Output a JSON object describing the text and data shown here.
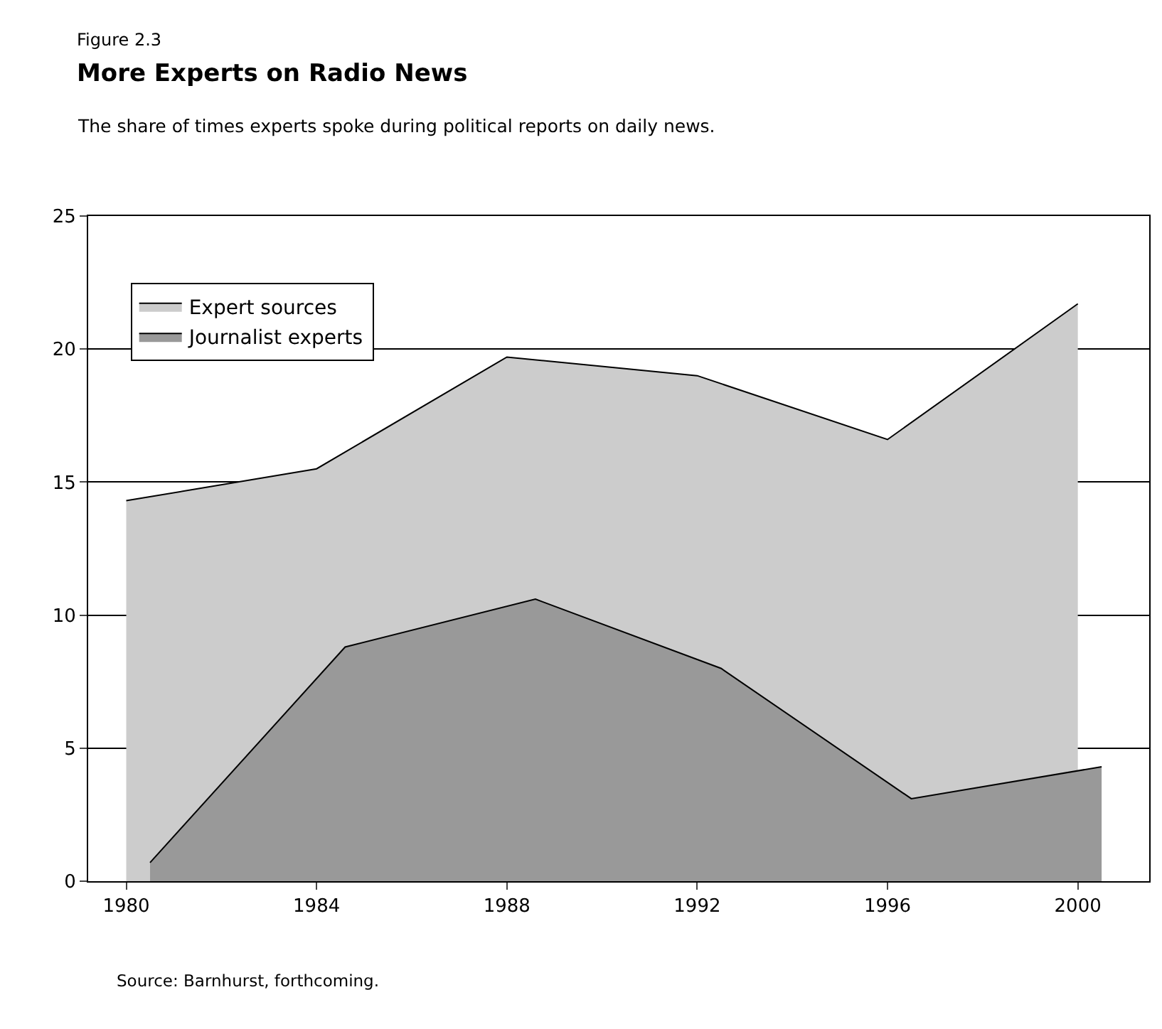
{
  "chart_data": {
    "type": "area",
    "title": "More Experts on Radio News",
    "subtitle": "The share of times experts spoke during political reports on daily news.",
    "annotations": [
      "Figure 2.3",
      "Source: Barnhurst, forthcoming."
    ],
    "series": [
      {
        "name": "Expert sources",
        "color": "#cccccc",
        "x": [
          1980,
          1984,
          1988,
          1992,
          1996,
          2000
        ],
        "values": [
          14.3,
          15.5,
          19.7,
          19.0,
          16.6,
          21.7
        ]
      },
      {
        "name": "Journalist experts",
        "color": "#999999",
        "x": [
          1980.5,
          1984.6,
          1988.6,
          1992.5,
          1996.5,
          2000.5
        ],
        "values": [
          0.7,
          8.8,
          10.6,
          8.0,
          3.1,
          4.3
        ]
      }
    ],
    "xlim": [
      1979.2,
      2001.5
    ],
    "xticks": [
      1980,
      1984,
      1988,
      1992,
      1996,
      2000
    ],
    "ylim": [
      0,
      25
    ],
    "yticks": [
      0,
      5,
      10,
      15,
      20,
      25
    ],
    "grid": "y",
    "legend": "top left"
  }
}
